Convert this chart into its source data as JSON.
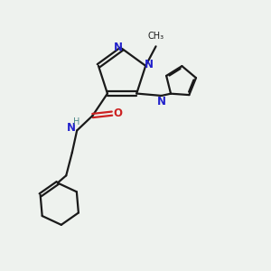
{
  "bg_color": "#eef2ee",
  "bond_color": "#1a1a1a",
  "n_color": "#2222cc",
  "o_color": "#cc2222",
  "h_color": "#4a8888",
  "line_width": 1.6,
  "figsize": [
    3.0,
    3.0
  ],
  "dpi": 100,
  "xlim": [
    0,
    10
  ],
  "ylim": [
    0,
    10
  ]
}
